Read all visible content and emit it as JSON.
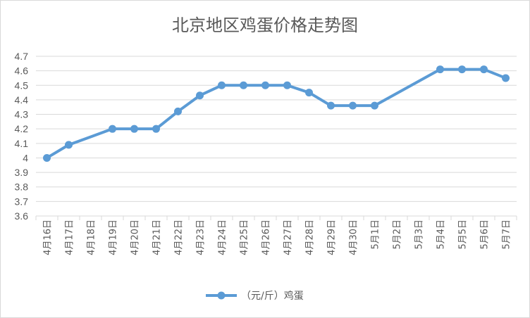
{
  "chart_data": {
    "type": "line",
    "title": "北京地区鸡蛋价格走势图",
    "xlabel": "",
    "ylabel": "",
    "ylim": [
      3.6,
      4.7
    ],
    "yticks": [
      "4.7",
      "4.6",
      "4.5",
      "4.4",
      "4.3",
      "4.2",
      "4.1",
      "4",
      "3.9",
      "3.8",
      "3.7",
      "3.6"
    ],
    "grid": true,
    "legend_position": "bottom",
    "categories": [
      "4月16日",
      "4月17日",
      "4月18日",
      "4月19日",
      "4月20日",
      "4月21日",
      "4月22日",
      "4月23日",
      "4月24日",
      "4月25日",
      "4月26日",
      "4月27日",
      "4月28日",
      "4月29日",
      "4月30日",
      "5月1日",
      "5月2日",
      "5月3日",
      "5月4日",
      "5月5日",
      "5月6日",
      "5月7日"
    ],
    "series": [
      {
        "name": "（元/斤）鸡蛋",
        "color": "#5b9bd5",
        "values": [
          4.0,
          4.09,
          null,
          4.2,
          4.2,
          4.2,
          4.32,
          4.43,
          4.5,
          4.5,
          4.5,
          4.5,
          4.45,
          4.36,
          4.36,
          4.36,
          null,
          null,
          4.61,
          4.61,
          4.61,
          4.55
        ]
      }
    ]
  }
}
